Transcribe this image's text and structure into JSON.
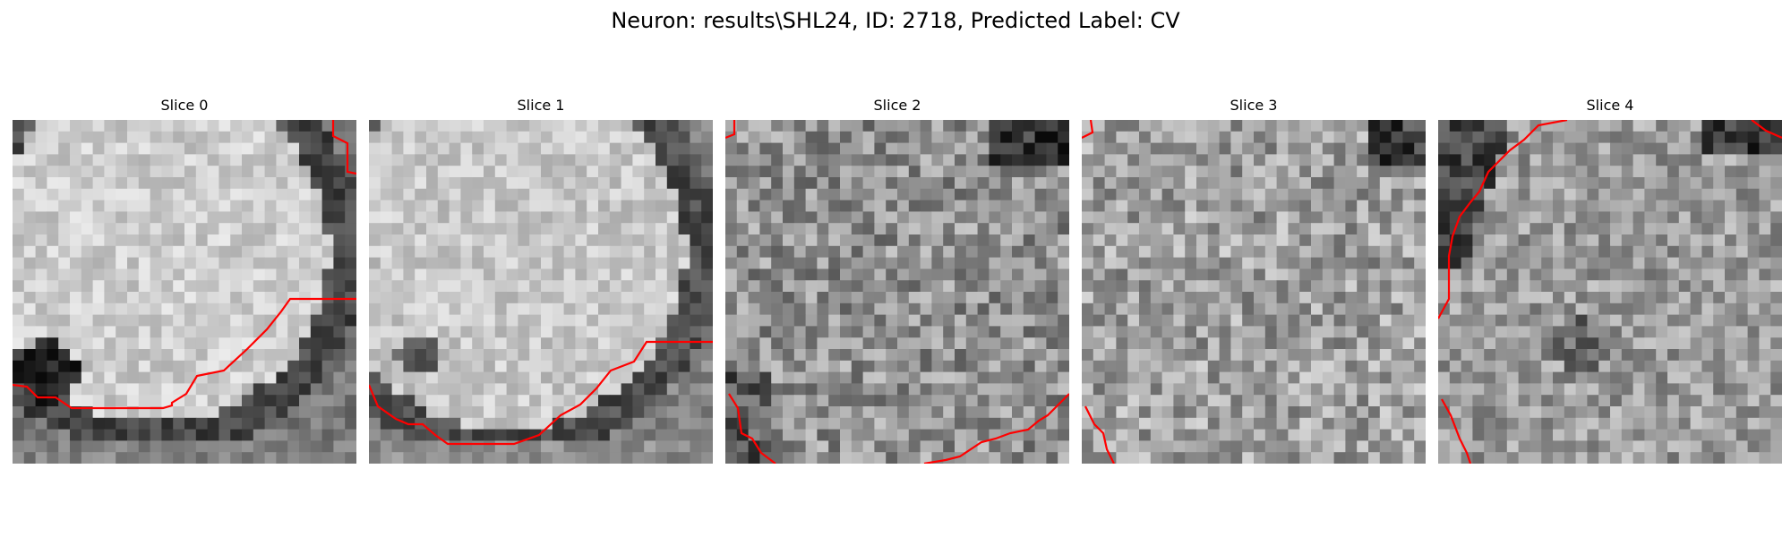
{
  "figure": {
    "title": "Neuron: results\\SHL24, ID: 2718, Predicted Label: CV"
  },
  "panels": [
    {
      "title": "Slice 0"
    },
    {
      "title": "Slice 1"
    },
    {
      "title": "Slice 2"
    },
    {
      "title": "Slice 3"
    },
    {
      "title": "Slice 4"
    }
  ],
  "colors": {
    "contour": "#ff0000",
    "background": "#ffffff"
  }
}
